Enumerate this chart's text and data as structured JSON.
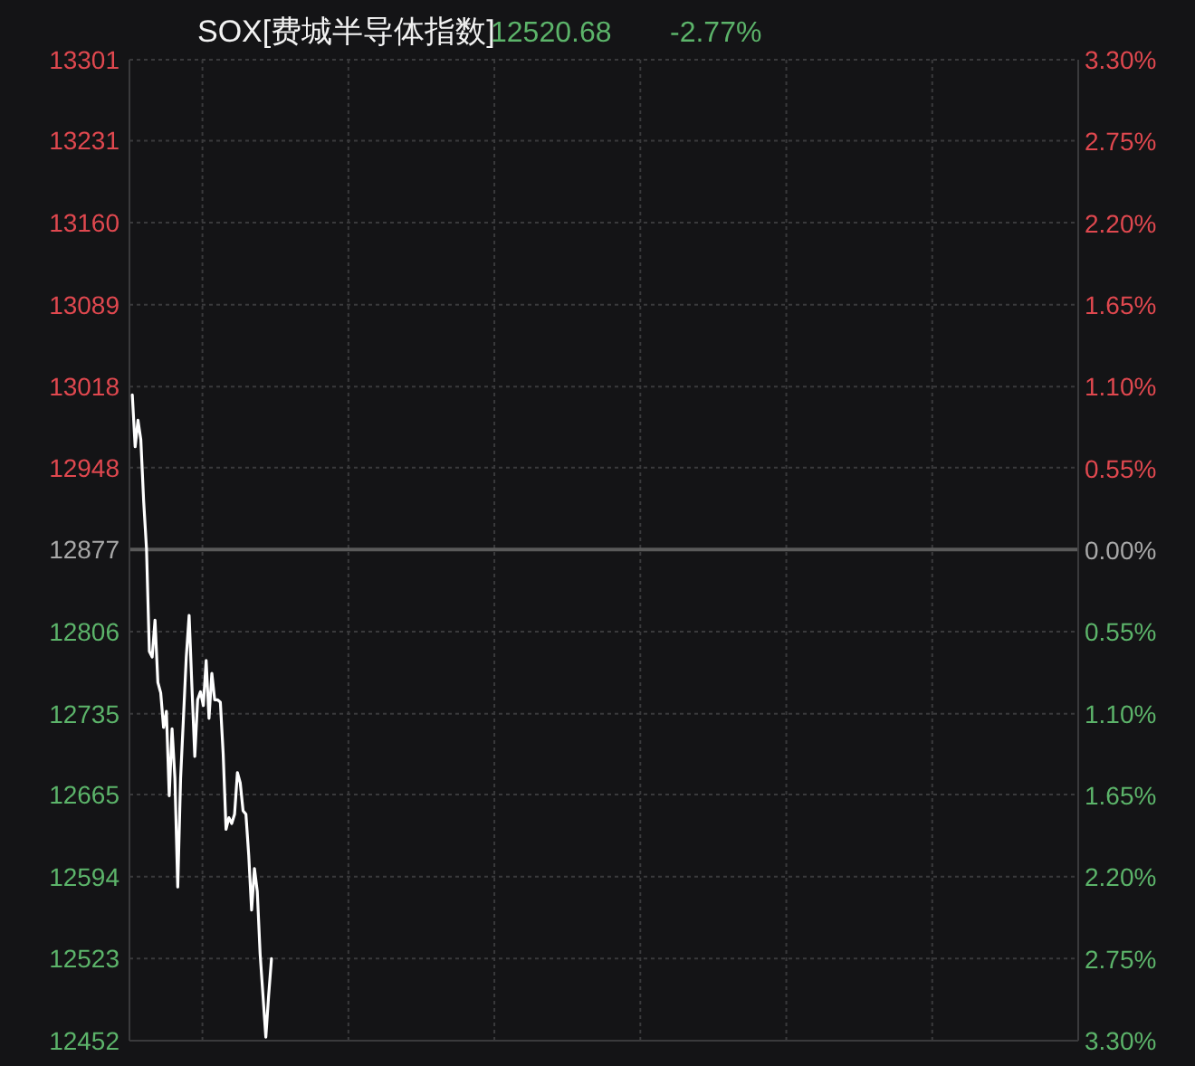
{
  "chart_data": {
    "type": "line",
    "title": "SOX[费城半导体指数]",
    "annotations": [
      "12520.68",
      "-2.77%"
    ],
    "categories": [
      null,
      null,
      null,
      null,
      null,
      null,
      null,
      null,
      null,
      null,
      null,
      null,
      null,
      null,
      null,
      null,
      null,
      null,
      null,
      null,
      null,
      null,
      null,
      null,
      null,
      null,
      null,
      null,
      null,
      null,
      null,
      null,
      null,
      null,
      null,
      null,
      null,
      null,
      null,
      null,
      null,
      null,
      null,
      null,
      null,
      null,
      null,
      null,
      null,
      null,
      null,
      null,
      null,
      null,
      null,
      null,
      null,
      null,
      null,
      null,
      null,
      null,
      null,
      null,
      null,
      null,
      null,
      null,
      null,
      null,
      null,
      null,
      null,
      null,
      null,
      null,
      null,
      null,
      null,
      null,
      null,
      null,
      null,
      null,
      null,
      null,
      null,
      null,
      null,
      null,
      null,
      null,
      null,
      null,
      null,
      null,
      null,
      null,
      null,
      null,
      null,
      null,
      null,
      null,
      null,
      null,
      null,
      null,
      null,
      null,
      null,
      null,
      null,
      null,
      null,
      null,
      null,
      null,
      null,
      null,
      null,
      null,
      null,
      null,
      null,
      null,
      null,
      null,
      null,
      null,
      null,
      null,
      null,
      null,
      null,
      null,
      null,
      null,
      null,
      null,
      null,
      null,
      null,
      null,
      null,
      null,
      null,
      null,
      null,
      null,
      null,
      null,
      null,
      null,
      null,
      null,
      null,
      null,
      null,
      null,
      null,
      null,
      null,
      null,
      null,
      null,
      null,
      null,
      null,
      null,
      null,
      null,
      null,
      null,
      null,
      null,
      null,
      null,
      null,
      null,
      null,
      null,
      null,
      null,
      null,
      null,
      null,
      null,
      null,
      null,
      null,
      null,
      null,
      null,
      null,
      null,
      null,
      null,
      null,
      null,
      null,
      null,
      null,
      null,
      null,
      null,
      null,
      null,
      null,
      null,
      null,
      null,
      null,
      null,
      null,
      null,
      null,
      null,
      null,
      null,
      null,
      null,
      null,
      null,
      null,
      null,
      null,
      null,
      null,
      null,
      null,
      null,
      null,
      null,
      null,
      null,
      null,
      null,
      null,
      null,
      null,
      null,
      null,
      null,
      null,
      null,
      null,
      null,
      null,
      null,
      null,
      null,
      null,
      null,
      null,
      null,
      null,
      null,
      null,
      null,
      null,
      null,
      null,
      null,
      null,
      null,
      null,
      null,
      null,
      null,
      null,
      null,
      null,
      null,
      null,
      null,
      null,
      null,
      null,
      null,
      null,
      null,
      null,
      null,
      null,
      null,
      null,
      null,
      null,
      null,
      null,
      null,
      null,
      null,
      null,
      null,
      null,
      null,
      null,
      null,
      null,
      null,
      null,
      null,
      null,
      null,
      null,
      null,
      null,
      null,
      null,
      null,
      null,
      null,
      null,
      null,
      null,
      null,
      null,
      null,
      null,
      null,
      null,
      null,
      null,
      null,
      null,
      null,
      null,
      null,
      null,
      null,
      null,
      null,
      null
    ],
    "series": [
      {
        "color": "#ffffff",
        "values": [
          null,
          13011,
          12966,
          12989,
          12972,
          12919,
          12878,
          12789,
          12784,
          12816,
          12762,
          12753,
          12723,
          12737,
          12664,
          12722,
          12679,
          12585,
          12679,
          12731,
          12784,
          12820,
          12758,
          12698,
          12747,
          12754,
          12742,
          12781,
          12731,
          12770,
          12747,
          12747,
          12745,
          12700,
          12635,
          12645,
          12640,
          12648,
          12684,
          12675,
          12651,
          12648,
          12612,
          12565,
          12601,
          12581,
          12527,
          12491,
          12455,
          12491,
          12523,
          null,
          null,
          null,
          null,
          null,
          null,
          null,
          null,
          null,
          null,
          null,
          null,
          null,
          null,
          null,
          null,
          null,
          null,
          null,
          null,
          null,
          null,
          null,
          null,
          null,
          null,
          null,
          null,
          null,
          null,
          null,
          null,
          null,
          null,
          null,
          null,
          null,
          null,
          null,
          null,
          null,
          null,
          null,
          null,
          null,
          null,
          null,
          null,
          null,
          null,
          null,
          null,
          null,
          null,
          null,
          null,
          null,
          null,
          null,
          null,
          null,
          null,
          null,
          null,
          null,
          null,
          null,
          null,
          null,
          null,
          null,
          null,
          null,
          null,
          null,
          null,
          null,
          null,
          null,
          null,
          null,
          null,
          null,
          null,
          null,
          null,
          null,
          null,
          null,
          null,
          null,
          null,
          null,
          null,
          null,
          null,
          null,
          null,
          null,
          null,
          null,
          null,
          null,
          null,
          null,
          null,
          null,
          null,
          null,
          null,
          null,
          null,
          null,
          null,
          null,
          null,
          null,
          null,
          null,
          null,
          null,
          null,
          null,
          null,
          null,
          null,
          null,
          null,
          null,
          null,
          null,
          null,
          null,
          null,
          null,
          null,
          null,
          null,
          null,
          null,
          null,
          null,
          null,
          null,
          null,
          null,
          null,
          null,
          null,
          null,
          null,
          null,
          null,
          null,
          null,
          null,
          null,
          null,
          null,
          null,
          null,
          null,
          null,
          null,
          null,
          null,
          null,
          null,
          null,
          null,
          null,
          null,
          null,
          null,
          null,
          null,
          null,
          null,
          null,
          null,
          null,
          null,
          null,
          null,
          null,
          null,
          null,
          null,
          null,
          null,
          null,
          null,
          null,
          null,
          null,
          null,
          null,
          null,
          null,
          null,
          null,
          null,
          null,
          null,
          null,
          null,
          null,
          null,
          null,
          null,
          null,
          null,
          null,
          null,
          null,
          null,
          null,
          null,
          null,
          null,
          null,
          null,
          null,
          null,
          null,
          null,
          null,
          null,
          null,
          null,
          null,
          null,
          null,
          null,
          null,
          null,
          null,
          null,
          null,
          null,
          null,
          null,
          null,
          null,
          null,
          null,
          null,
          null,
          null,
          null,
          null,
          null,
          null,
          null,
          null,
          null,
          null,
          null,
          null,
          null,
          null,
          null,
          null,
          null,
          null,
          null,
          null,
          null,
          null,
          null,
          null,
          null,
          null,
          null,
          null,
          null,
          null,
          null,
          null,
          null,
          null,
          null,
          null,
          null
        ]
      }
    ],
    "ylim": [
      12452,
      13301
    ],
    "yticks": [
      13301,
      13231,
      13160,
      13089,
      13018,
      12948,
      12877,
      12806,
      12735,
      12665,
      12594,
      12523,
      12452
    ],
    "y2lim": [
      -3.3,
      3.3
    ],
    "y2ticks": [
      {
        "value": 3.3,
        "label": "3.30%"
      },
      {
        "value": 2.75,
        "label": "2.75%"
      },
      {
        "value": 2.2,
        "label": "2.20%"
      },
      {
        "value": 1.65,
        "label": "1.65%"
      },
      {
        "value": 1.1,
        "label": "1.10%"
      },
      {
        "value": 0.55,
        "label": "0.55%"
      },
      {
        "value": 0,
        "label": "0.00%"
      },
      {
        "value": -0.55,
        "label": "0.55%"
      },
      {
        "value": -1.1,
        "label": "1.10%"
      },
      {
        "value": -1.65,
        "label": "1.65%"
      },
      {
        "value": -2.2,
        "label": "2.20%"
      },
      {
        "value": -2.75,
        "label": "2.75%"
      },
      {
        "value": -3.3,
        "label": "3.30%"
      }
    ],
    "ref_lines": [
      {
        "axis": "y",
        "value": 12877,
        "color": "#5a5a5a"
      }
    ],
    "grid": true,
    "tick_labels": "y"
  }
}
